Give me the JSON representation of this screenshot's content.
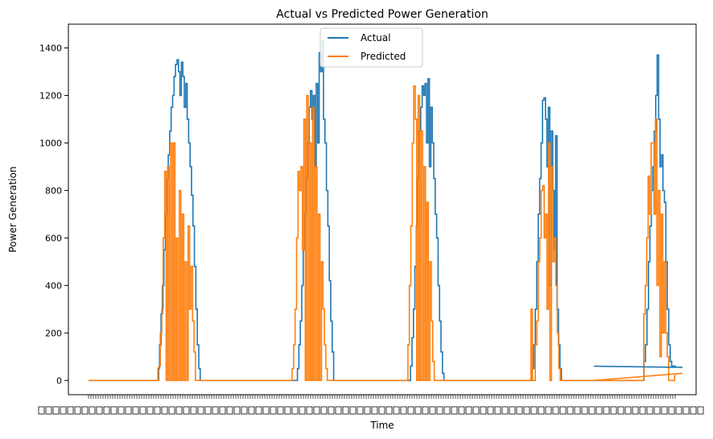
{
  "chart_data": {
    "type": "line",
    "title": "Actual vs Predicted Power Generation",
    "xlabel": "Time",
    "ylabel": "Power Generation",
    "ylim": [
      -60,
      1500
    ],
    "yticks": [
      0,
      200,
      400,
      600,
      800,
      1000,
      1200,
      1400
    ],
    "grid": false,
    "legend_position": "top-center",
    "x_tick_labels": "dense, overlapping and illegible",
    "colors": {
      "Actual": "#1f77b4",
      "Predicted": "#ff7f0e"
    },
    "series": [
      {
        "name": "Actual",
        "values": [
          0,
          0,
          0,
          0,
          0,
          0,
          0,
          0,
          0,
          0,
          0,
          0,
          0,
          0,
          0,
          0,
          0,
          0,
          0,
          0,
          0,
          0,
          0,
          0,
          0,
          0,
          0,
          0,
          0,
          0,
          0,
          0,
          0,
          0,
          0,
          0,
          0,
          0,
          0,
          0,
          0,
          0,
          0,
          0,
          0,
          0,
          0,
          0,
          50,
          150,
          280,
          400,
          550,
          700,
          850,
          950,
          1050,
          1150,
          1200,
          1280,
          1330,
          1350,
          1300,
          1200,
          1340,
          1280,
          1150,
          1250,
          1100,
          1000,
          900,
          780,
          650,
          480,
          300,
          150,
          50,
          0,
          0,
          0,
          0,
          0,
          0,
          0,
          0,
          0,
          0,
          0,
          0,
          0,
          0,
          0,
          0,
          0,
          0,
          0,
          0,
          0,
          0,
          0,
          0,
          0,
          0,
          0,
          0,
          0,
          0,
          0,
          0,
          0,
          0,
          0,
          0,
          0,
          0,
          0,
          0,
          0,
          0,
          0,
          0,
          0,
          0,
          0,
          0,
          0,
          0,
          0,
          0,
          0,
          0,
          0,
          0,
          0,
          0,
          0,
          0,
          0,
          0,
          0,
          0,
          0,
          0,
          0,
          50,
          150,
          250,
          400,
          550,
          700,
          850,
          1000,
          1150,
          1220,
          1100,
          1200,
          900,
          1250,
          1000,
          1380,
          1300,
          1430,
          1100,
          1000,
          800,
          650,
          420,
          250,
          120,
          0,
          0,
          0,
          0,
          0,
          0,
          0,
          0,
          0,
          0,
          0,
          0,
          0,
          0,
          0,
          0,
          0,
          0,
          0,
          0,
          0,
          0,
          0,
          0,
          0,
          0,
          0,
          0,
          0,
          0,
          0,
          0,
          0,
          0,
          0,
          0,
          0,
          0,
          0,
          0,
          0,
          0,
          0,
          0,
          0,
          0,
          0,
          0,
          0,
          0,
          0,
          0,
          0,
          60,
          180,
          300,
          480,
          650,
          850,
          1050,
          1150,
          1240,
          1200,
          1250,
          1000,
          1270,
          900,
          1150,
          1000,
          850,
          700,
          600,
          400,
          250,
          120,
          30,
          0,
          0,
          0,
          0,
          0,
          0,
          0,
          0,
          0,
          0,
          0,
          0,
          0,
          0,
          0,
          0,
          0,
          0,
          0,
          0,
          0,
          0,
          0,
          0,
          0,
          0,
          0,
          0,
          0,
          0,
          0,
          0,
          0,
          0,
          0,
          0,
          0,
          0,
          0,
          0,
          0,
          0,
          0,
          0,
          0,
          0,
          0,
          0,
          0,
          0,
          0,
          0,
          0,
          0,
          0,
          0,
          0,
          0,
          0,
          0,
          0,
          50,
          150,
          300,
          500,
          700,
          850,
          1000,
          1180,
          1190,
          1100,
          900,
          1150,
          400,
          1050,
          800,
          550,
          1030,
          300,
          150,
          50,
          0,
          0,
          0,
          0,
          0,
          0,
          0,
          0,
          0,
          0,
          0,
          0,
          0,
          0,
          0,
          0,
          0,
          0,
          0,
          0,
          0,
          0,
          0,
          0,
          0,
          0,
          0,
          0,
          0,
          0,
          0,
          0,
          0,
          0,
          0,
          0,
          0,
          0,
          0,
          0,
          0,
          0,
          0,
          0,
          0,
          0,
          0,
          0,
          0,
          0,
          0,
          0,
          0,
          0,
          0,
          0,
          0,
          80,
          150,
          300,
          500,
          650,
          800,
          900,
          1050,
          1200,
          1370,
          1100,
          900,
          950,
          800,
          750,
          500,
          300,
          150,
          80,
          60,
          60,
          60,
          60
        ]
      },
      {
        "name": "Predicted",
        "values": [
          0,
          0,
          0,
          0,
          0,
          0,
          0,
          0,
          0,
          0,
          0,
          0,
          0,
          0,
          0,
          0,
          0,
          0,
          0,
          0,
          0,
          0,
          0,
          0,
          0,
          0,
          0,
          0,
          0,
          0,
          0,
          0,
          0,
          0,
          0,
          0,
          0,
          0,
          0,
          0,
          0,
          0,
          0,
          0,
          0,
          0,
          0,
          0,
          60,
          200,
          300,
          600,
          880,
          0,
          900,
          0,
          1000,
          0,
          1000,
          0,
          600,
          0,
          800,
          0,
          700,
          0,
          500,
          0,
          650,
          300,
          480,
          250,
          120,
          0,
          0,
          0,
          0,
          0,
          0,
          0,
          0,
          0,
          0,
          0,
          0,
          0,
          0,
          0,
          0,
          0,
          0,
          0,
          0,
          0,
          0,
          0,
          0,
          0,
          0,
          0,
          0,
          0,
          0,
          0,
          0,
          0,
          0,
          0,
          0,
          0,
          0,
          0,
          0,
          0,
          0,
          0,
          0,
          0,
          0,
          0,
          0,
          0,
          0,
          0,
          0,
          0,
          0,
          0,
          0,
          0,
          0,
          0,
          0,
          0,
          0,
          0,
          0,
          0,
          0,
          50,
          150,
          300,
          600,
          880,
          800,
          900,
          550,
          1100,
          0,
          1200,
          0,
          1000,
          0,
          1150,
          0,
          900,
          0,
          700,
          0,
          500,
          300,
          150,
          50,
          0,
          0,
          0,
          0,
          0,
          0,
          0,
          0,
          0,
          0,
          0,
          0,
          0,
          0,
          0,
          0,
          0,
          0,
          0,
          0,
          0,
          0,
          0,
          0,
          0,
          0,
          0,
          0,
          0,
          0,
          0,
          0,
          0,
          0,
          0,
          0,
          0,
          0,
          0,
          0,
          0,
          0,
          0,
          0,
          0,
          0,
          0,
          0,
          0,
          0,
          0,
          0,
          0,
          0,
          0,
          150,
          400,
          650,
          1000,
          1240,
          1100,
          0,
          1200,
          0,
          1050,
          0,
          900,
          0,
          750,
          0,
          500,
          250,
          80,
          0,
          0,
          0,
          0,
          0,
          0,
          0,
          0,
          0,
          0,
          0,
          0,
          0,
          0,
          0,
          0,
          0,
          0,
          0,
          0,
          0,
          0,
          0,
          0,
          0,
          0,
          0,
          0,
          0,
          0,
          0,
          0,
          0,
          0,
          0,
          0,
          0,
          0,
          0,
          0,
          0,
          0,
          0,
          0,
          0,
          0,
          0,
          0,
          0,
          0,
          0,
          0,
          0,
          0,
          0,
          0,
          0,
          0,
          0,
          0,
          0,
          0,
          0,
          0,
          0,
          0,
          300,
          0,
          0,
          150,
          250,
          500,
          600,
          800,
          820,
          600,
          700,
          300,
          1000,
          0,
          900,
          500,
          600,
          400,
          200,
          50,
          0,
          0,
          0,
          0,
          0,
          0,
          0,
          0,
          0,
          0,
          0,
          0,
          0,
          0,
          0,
          0,
          0,
          0,
          0,
          0,
          0,
          0,
          0,
          0,
          0,
          0,
          0,
          0,
          0,
          0,
          0,
          0,
          0,
          0,
          0,
          0,
          0,
          0,
          0,
          0,
          0,
          0,
          0,
          0,
          0,
          0,
          0,
          0,
          0,
          0,
          0,
          0,
          0,
          0,
          0,
          0,
          0,
          280,
          400,
          600,
          860,
          700,
          1000,
          1000,
          700,
          1100,
          400,
          800,
          100,
          700,
          200,
          500,
          200,
          100,
          0,
          0,
          0,
          0,
          20,
          20
        ]
      }
    ]
  }
}
